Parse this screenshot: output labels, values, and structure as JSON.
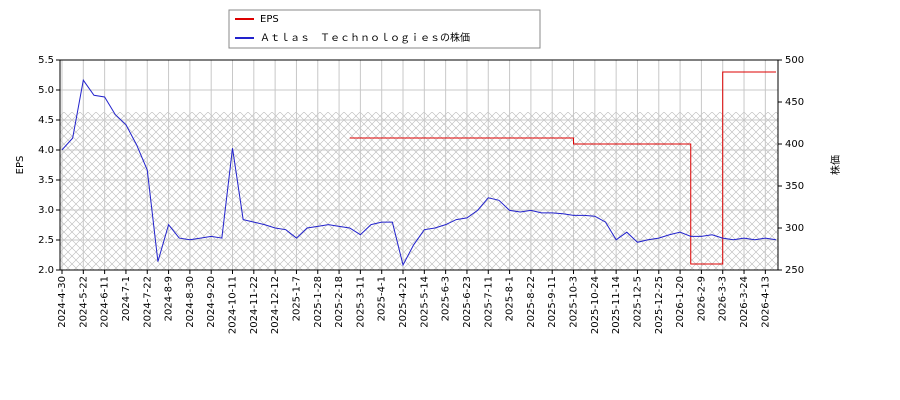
{
  "chart_data": {
    "type": "line",
    "categories": [
      "2024-4-30",
      null,
      "2024-5-22",
      null,
      "2024-6-11",
      null,
      "2024-7-1",
      null,
      "2024-7-22",
      null,
      "2024-8-9",
      null,
      "2024-8-30",
      null,
      "2024-9-20",
      null,
      "2024-10-11",
      null,
      "2024-11-22",
      null,
      "2024-12-12",
      null,
      "2025-1-7",
      null,
      "2025-1-28",
      null,
      "2025-2-18",
      null,
      "2025-3-11",
      null,
      "2025-4-1",
      null,
      "2025-4-21",
      null,
      "2025-5-14",
      null,
      "2025-6-3",
      null,
      "2025-6-23",
      null,
      "2025-7-11",
      null,
      "2025-8-1",
      null,
      "2025-8-22",
      null,
      "2025-9-11",
      null,
      "2025-10-3",
      null,
      "2025-10-24",
      null,
      "2025-11-14",
      null,
      "2025-12-5",
      null,
      "2025-12-25",
      null,
      "2026-1-20",
      null,
      "2026-2-9",
      null,
      "2026-3-3",
      null,
      "2026-3-24",
      null,
      "2026-4-13",
      null
    ],
    "series": [
      {
        "name": "EPS",
        "color": "#dd0000",
        "drawstyle": "steps-post",
        "values": [
          null,
          null,
          null,
          null,
          null,
          null,
          null,
          null,
          null,
          null,
          null,
          null,
          null,
          null,
          null,
          null,
          null,
          null,
          null,
          null,
          null,
          null,
          null,
          null,
          null,
          null,
          null,
          4.2,
          4.2,
          4.2,
          4.2,
          4.2,
          4.2,
          4.2,
          4.2,
          4.2,
          4.2,
          4.2,
          4.2,
          4.2,
          4.2,
          4.2,
          4.2,
          4.2,
          4.2,
          4.2,
          4.2,
          4.2,
          4.1,
          4.1,
          4.1,
          4.1,
          4.1,
          4.1,
          4.1,
          4.1,
          4.1,
          4.1,
          4.1,
          2.1,
          2.1,
          2.1,
          5.3,
          5.3,
          5.3,
          5.3,
          5.3,
          5.3
        ]
      },
      {
        "name": "Ａｔｌａｓ　Ｔｅｃｈｎｏｌｏｇｉｅｓの株価",
        "color": "#2222cc",
        "axis": "y2",
        "values": [
          393,
          407,
          476,
          458,
          456,
          435,
          423,
          399,
          369,
          260,
          304,
          288,
          286,
          288,
          290,
          288,
          395,
          310,
          307,
          304,
          300,
          298,
          288,
          300,
          302,
          304,
          302,
          300,
          292,
          304,
          307,
          307,
          256,
          280,
          298,
          300,
          304,
          310,
          312,
          321,
          336,
          333,
          321,
          319,
          321,
          318,
          318,
          317,
          315,
          315,
          314,
          307,
          286,
          295,
          283,
          286,
          288,
          292,
          295,
          290,
          290,
          292,
          288,
          286,
          288,
          286,
          288,
          286
        ]
      }
    ],
    "ylabel": "EPS",
    "y2label": "株価",
    "ylim": [
      2,
      5.5
    ],
    "yticks": [
      {
        "value": 2,
        "label": "2.0"
      },
      {
        "value": 2.5,
        "label": "2.5"
      },
      {
        "value": 3,
        "label": "3.0"
      },
      {
        "value": 3.5,
        "label": "3.5"
      },
      {
        "value": 4,
        "label": "4.0"
      },
      {
        "value": 4.5,
        "label": "4.5"
      },
      {
        "value": 5,
        "label": "5.0"
      },
      {
        "value": 5.5,
        "label": "5.5"
      }
    ],
    "y2lim": [
      250,
      500
    ],
    "y2ticks": [
      250,
      300,
      350,
      400,
      450,
      500
    ],
    "grid": true
  }
}
